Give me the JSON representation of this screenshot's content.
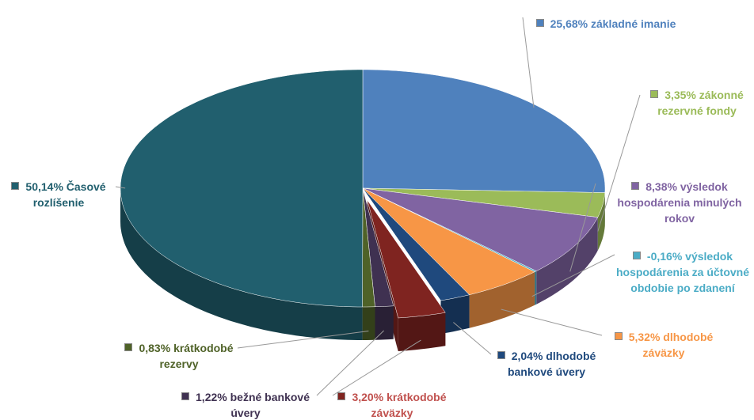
{
  "chart_data": {
    "type": "pie3d",
    "categories": [
      "základné imanie",
      "zákonné rezervné fondy",
      "výsledok hospodárenia minulých rokov",
      "výsledok hospodárenia za účtovné obdobie po zdanení",
      "dlhodobé záväzky",
      "dlhodobé bankové úvery",
      "krátkodobé záväzky",
      "bežné bankové úvery",
      "krátkodobé rezervy",
      "Časové rozlíšenie"
    ],
    "values": [
      25.68,
      3.35,
      8.38,
      -0.16,
      5.32,
      2.04,
      3.2,
      1.22,
      0.83,
      50.14
    ],
    "value_labels": [
      "25,68%",
      "3,35%",
      "8,38%",
      "-0,16%",
      "5,32%",
      "2,04%",
      "3,20%",
      "1,22%",
      "0,83%",
      "50,14%"
    ],
    "colors": [
      "#4f81bd",
      "#9bbb59",
      "#8064a2",
      "#4bacc6",
      "#f79646",
      "#1f497d",
      "#7f2420",
      "#3f3151",
      "#4f6228",
      "#215f6e"
    ],
    "exploded": [
      6
    ]
  }
}
